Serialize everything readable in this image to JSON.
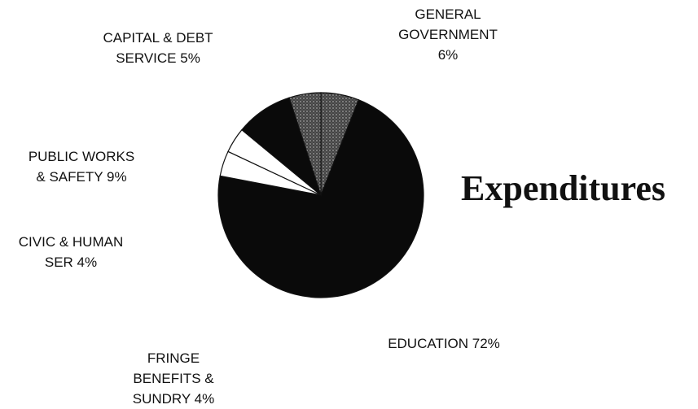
{
  "chart_data": {
    "type": "pie",
    "title": "Expenditures",
    "slices": [
      {
        "name": "GENERAL GOVERNMENT",
        "value": 6,
        "label_lines": [
          "GENERAL",
          "GOVERNMENT",
          "6%"
        ],
        "fill": "stipple"
      },
      {
        "name": "EDUCATION",
        "value": 72,
        "label_lines": [
          "EDUCATION 72%"
        ],
        "fill": "#0a0a0a"
      },
      {
        "name": "FRINGE BENEFITS & SUNDRY",
        "value": 4,
        "label_lines": [
          "FRINGE",
          "BENEFITS &",
          "SUNDRY 4%"
        ],
        "fill": "#ffffff"
      },
      {
        "name": "CIVIC & HUMAN SER",
        "value": 4,
        "label_lines": [
          "CIVIC & HUMAN",
          "SER 4%"
        ],
        "fill": "#ffffff"
      },
      {
        "name": "PUBLIC WORKS & SAFETY",
        "value": 9,
        "label_lines": [
          "PUBLIC WORKS",
          "& SAFETY 9%"
        ],
        "fill": "#0a0a0a"
      },
      {
        "name": "CAPITAL & DEBT SERVICE",
        "value": 5,
        "label_lines": [
          "CAPITAL & DEBT",
          "SERVICE 5%"
        ],
        "fill": "stipple"
      }
    ]
  }
}
